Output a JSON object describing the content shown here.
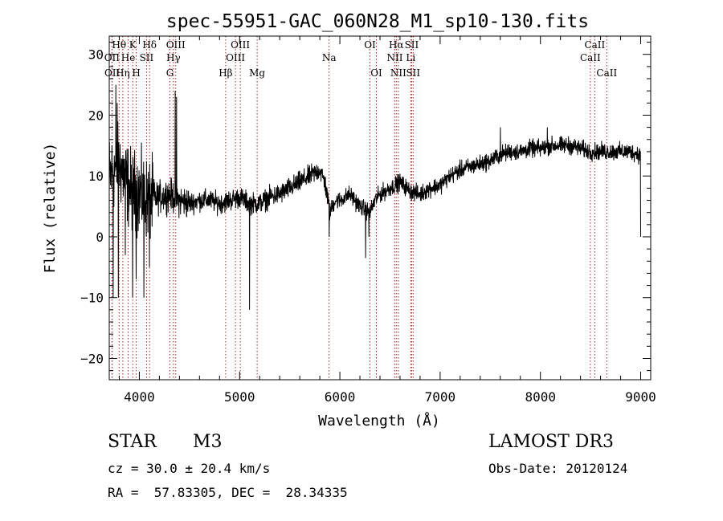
{
  "chart_data": {
    "type": "line",
    "title": "spec-55951-GAC_060N28_M1_sp10-130.fits",
    "xlabel": "Wavelength (Å)",
    "ylabel": "Flux (relative)",
    "xlim": [
      3700,
      9100
    ],
    "ylim": [
      -23.5,
      33
    ],
    "xticks": [
      4000,
      5000,
      6000,
      7000,
      8000,
      9000
    ],
    "yticks": [
      -20,
      -10,
      0,
      10,
      20,
      30
    ],
    "xtick_labels": [
      "4000",
      "5000",
      "6000",
      "7000",
      "8000",
      "9000"
    ],
    "ytick_labels": [
      "−20",
      "−10",
      "0",
      "10",
      "20",
      "30"
    ],
    "grid": false,
    "line_color": "#000000",
    "marker_color": "#b22222",
    "lines": [
      {
        "label": "Hθ",
        "wave": 3798,
        "row": 0
      },
      {
        "label": "OII",
        "wave": 3727,
        "row": 1
      },
      {
        "label": "OII",
        "wave": 3729,
        "row": 2
      },
      {
        "label": "Hη",
        "wave": 3835,
        "row": 2
      },
      {
        "label": "He",
        "wave": 3889,
        "row": 1
      },
      {
        "label": "K",
        "wave": 3934,
        "row": 0
      },
      {
        "label": "H",
        "wave": 3969,
        "row": 2
      },
      {
        "label": "SII",
        "wave": 4072,
        "row": 1
      },
      {
        "label": "Hδ",
        "wave": 4102,
        "row": 0
      },
      {
        "label": "OIII",
        "wave": 4363,
        "row": 0
      },
      {
        "label": "Hγ",
        "wave": 4340,
        "row": 1
      },
      {
        "label": "G",
        "wave": 4305,
        "row": 2
      },
      {
        "label": "Hβ",
        "wave": 4861,
        "row": 2
      },
      {
        "label": "OIII",
        "wave": 5007,
        "row": 0
      },
      {
        "label": "OIII",
        "wave": 4959,
        "row": 1
      },
      {
        "label": "Mg",
        "wave": 5175,
        "row": 2
      },
      {
        "label": "Na",
        "wave": 5893,
        "row": 1
      },
      {
        "label": "OI",
        "wave": 6300,
        "row": 0
      },
      {
        "label": "OI",
        "wave": 6364,
        "row": 2
      },
      {
        "label": "Hα",
        "wave": 6563,
        "row": 0
      },
      {
        "label": "NII",
        "wave": 6548,
        "row": 1
      },
      {
        "label": "NII",
        "wave": 6583,
        "row": 2
      },
      {
        "label": "SII",
        "wave": 6716,
        "row": 0
      },
      {
        "label": "Li",
        "wave": 6707,
        "row": 1
      },
      {
        "label": "SII",
        "wave": 6731,
        "row": 2
      },
      {
        "label": "CaII",
        "wave": 8542,
        "row": 0
      },
      {
        "label": "CaII",
        "wave": 8498,
        "row": 1
      },
      {
        "label": "CaII",
        "wave": 8662,
        "row": 2
      }
    ],
    "spectrum_anchors": {
      "wavelength": [
        3700,
        3800,
        3900,
        4000,
        4100,
        4200,
        4300,
        4400,
        4500,
        4600,
        4700,
        4800,
        4900,
        5000,
        5100,
        5200,
        5300,
        5400,
        5500,
        5600,
        5700,
        5800,
        5850,
        5900,
        5950,
        6000,
        6100,
        6200,
        6300,
        6350,
        6400,
        6500,
        6600,
        6700,
        6800,
        6900,
        7000,
        7100,
        7200,
        7300,
        7400,
        7500,
        7600,
        7700,
        7800,
        7900,
        8000,
        8100,
        8200,
        8300,
        8400,
        8500,
        8600,
        8700,
        8800,
        8900,
        9000
      ],
      "flux": [
        10,
        12,
        8,
        7,
        6,
        6.5,
        7,
        6,
        5.5,
        6,
        6,
        5.5,
        6,
        6.5,
        5.5,
        5.5,
        6.5,
        7,
        8,
        9,
        10,
        11,
        9,
        4,
        6,
        6,
        7,
        5,
        4,
        6,
        7,
        8,
        9,
        7.5,
        7,
        8,
        8.5,
        10,
        11,
        11.5,
        12,
        12.5,
        13.5,
        14,
        14,
        14.5,
        14.5,
        15,
        15,
        15,
        14.5,
        14,
        14,
        14,
        14,
        14,
        13.5
      ],
      "noise_sigma": 1.4
    },
    "spectrum_dips": [
      {
        "wavelength": 3740,
        "flux": -10
      },
      {
        "wavelength": 3790,
        "flux": -10
      },
      {
        "wavelength": 3860,
        "flux": -3
      },
      {
        "wavelength": 3933,
        "flux": -10
      },
      {
        "wavelength": 3968,
        "flux": -7
      },
      {
        "wavelength": 4045,
        "flux": -10
      },
      {
        "wavelength": 4101,
        "flux": -5
      },
      {
        "wavelength": 5100,
        "flux": -12
      },
      {
        "wavelength": 5893,
        "flux": 0
      },
      {
        "wavelength": 6257,
        "flux": -3.5
      },
      {
        "wavelength": 6290,
        "flux": 0
      },
      {
        "wavelength": 9000,
        "flux": 0
      }
    ],
    "spectrum_spikes": [
      {
        "wavelength": 3765,
        "flux": 25
      },
      {
        "wavelength": 3780,
        "flux": 22
      },
      {
        "wavelength": 4358,
        "flux": 24
      },
      {
        "wavelength": 4370,
        "flux": 23
      },
      {
        "wavelength": 7600,
        "flux": 18
      },
      {
        "wavelength": 8070,
        "flux": 18
      }
    ]
  },
  "footer": {
    "object_type": "STAR",
    "subclass": "M3",
    "survey": "LAMOST DR3",
    "redshift": "cz = 30.0 ± 20.4 km/s",
    "obs_date": "Obs-Date: 20120124",
    "coords": "RA =  57.83305, DEC =  28.34335"
  }
}
